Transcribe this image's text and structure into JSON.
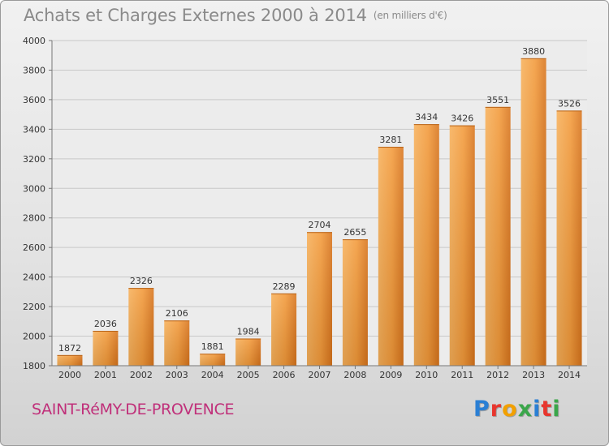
{
  "header": {
    "title": "Achats et Charges Externes 2000 à 2014",
    "subtitle": "(en milliers d'€)"
  },
  "footer": {
    "city": "SAINT-RéMY-DE-PROVENCE",
    "logo_letters": [
      "P",
      "r",
      "o",
      "x",
      "i",
      "t",
      "i"
    ],
    "logo_colors": [
      "#2a7fd4",
      "#e8352d",
      "#f2a000",
      "#3aa64a",
      "#2a7fd4",
      "#e8352d",
      "#3aa64a"
    ]
  },
  "chart_data": {
    "type": "bar",
    "title": "Achats et Charges Externes 2000 à 2014",
    "subtitle": "(en milliers d'€)",
    "categories": [
      "2000",
      "2001",
      "2002",
      "2003",
      "2004",
      "2005",
      "2006",
      "2007",
      "2008",
      "2009",
      "2010",
      "2011",
      "2012",
      "2013",
      "2014"
    ],
    "values": [
      1872,
      2036,
      2326,
      2106,
      1881,
      1984,
      2289,
      2704,
      2655,
      3281,
      3434,
      3426,
      3551,
      3880,
      3526
    ],
    "ylim": [
      1800,
      4000
    ],
    "yticks": [
      1800,
      2000,
      2200,
      2400,
      2600,
      2800,
      3000,
      3200,
      3400,
      3600,
      3800,
      4000
    ],
    "grid": true,
    "bar_color": "#f08c2a",
    "grid_color": "#c8c8c8"
  }
}
